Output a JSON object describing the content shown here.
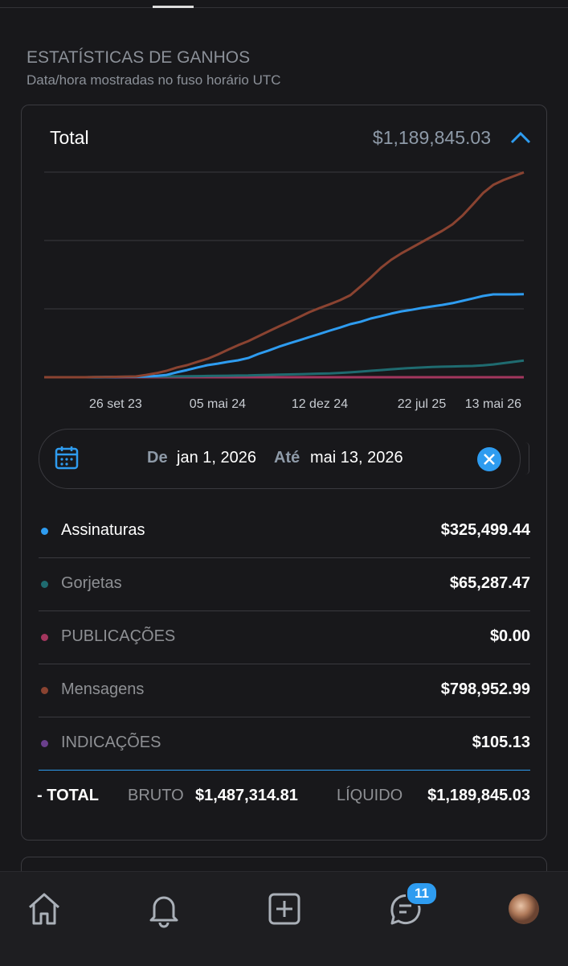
{
  "section": {
    "title": "ESTATÍSTICAS DE GANHOS",
    "subtitle": "Data/hora mostradas no fuso horário UTC"
  },
  "card": {
    "title": "Total",
    "amount": "$1,189,845.03"
  },
  "chart_data": {
    "type": "line",
    "categories": [
      null,
      null,
      null,
      null,
      null,
      null,
      null,
      "26 set 23",
      null,
      null,
      null,
      null,
      null,
      null,
      null,
      null,
      null,
      "05 mai 24",
      null,
      null,
      null,
      null,
      null,
      null,
      null,
      null,
      null,
      "12 dez 24",
      null,
      null,
      null,
      null,
      null,
      null,
      null,
      null,
      null,
      "22 jul 25",
      null,
      null,
      null,
      null,
      null,
      null,
      "13 mai 26",
      null,
      null,
      null
    ],
    "ylim": [
      0,
      800000
    ],
    "series": [
      {
        "color": "#8a4331",
        "values": [
          0,
          0,
          0,
          0,
          0,
          500,
          1000,
          1500,
          2500,
          3000,
          9000,
          16000,
          25000,
          38000,
          47000,
          60000,
          72000,
          88000,
          107000,
          125000,
          141000,
          160000,
          179000,
          198000,
          216000,
          235000,
          254000,
          270000,
          285000,
          301000,
          320000,
          354000,
          389000,
          427000,
          458000,
          483000,
          505000,
          527000,
          549000,
          571000,
          596000,
          631000,
          674000,
          718000,
          750000,
          769000,
          784000,
          799000
        ]
      },
      {
        "color": "#2e9cf0",
        "values": [
          0,
          0,
          0,
          0,
          0,
          0,
          500,
          1000,
          1500,
          2000,
          3000,
          5000,
          9000,
          19000,
          28000,
          38000,
          47000,
          53000,
          60000,
          66000,
          75000,
          91000,
          104000,
          119000,
          132000,
          144000,
          157000,
          169000,
          182000,
          194000,
          207000,
          216000,
          229000,
          238000,
          248000,
          257000,
          263000,
          270000,
          276000,
          282000,
          289000,
          298000,
          307000,
          317000,
          323000,
          323000,
          323000,
          324000
        ]
      },
      {
        "color": "#1f6b70",
        "values": [
          0,
          0,
          0,
          0,
          0,
          1000,
          1000,
          1500,
          2000,
          2000,
          2500,
          3000,
          3000,
          3500,
          4000,
          4500,
          5000,
          5500,
          6000,
          6500,
          7000,
          8000,
          9000,
          10000,
          11000,
          12000,
          13000,
          14000,
          15000,
          17000,
          19000,
          22000,
          25000,
          28000,
          31000,
          34000,
          36000,
          38000,
          40000,
          41000,
          42000,
          43000,
          44000,
          46000,
          50000,
          55000,
          60000,
          65000
        ]
      },
      {
        "color": "#a3365e",
        "values": [
          0,
          0,
          0,
          0,
          0,
          0,
          0,
          0,
          0,
          0,
          0,
          0,
          0,
          0,
          0,
          0,
          0,
          0,
          0,
          0,
          0,
          0,
          0,
          0,
          0,
          0,
          0,
          0,
          0,
          0,
          0,
          0,
          0,
          0,
          0,
          0,
          0,
          0,
          0,
          0,
          0,
          0,
          0,
          0,
          0,
          0,
          0,
          0
        ]
      }
    ]
  },
  "date_range": {
    "from_label": "De",
    "from": "jan 1, 2026",
    "to_label": "Até",
    "to": "mai 13, 2026"
  },
  "breakdown": [
    {
      "name": "Assinaturas",
      "color": "#2e9cf0",
      "amount": "$325,499.44"
    },
    {
      "name": "Gorjetas",
      "color": "#1f6b70",
      "amount": "$65,287.47"
    },
    {
      "name": "PUBLICAÇÕES",
      "color": "#a3365e",
      "amount": "$0.00"
    },
    {
      "name": "Mensagens",
      "color": "#8a4331",
      "amount": "$798,952.99"
    },
    {
      "name": "INDICAÇÕES",
      "color": "#6a3f8c",
      "amount": "$105.13"
    }
  ],
  "total": {
    "label": "- TOTAL",
    "gross_label": "BRUTO",
    "gross": "$1,487,314.81",
    "net_label": "LÍQUIDO",
    "net": "$1,189,845.03"
  },
  "nav": {
    "badge": 11
  }
}
